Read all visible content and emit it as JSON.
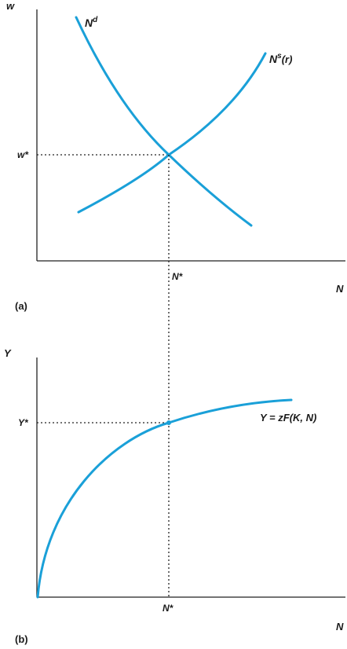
{
  "colors": {
    "curve": "#1aa0d8",
    "axis": "#222222",
    "text": "#1a1a1a"
  },
  "panel_a": {
    "label": "(a)",
    "y_axis_label": "w",
    "x_axis_label": "N",
    "equilibrium_wage_label": "w*",
    "equilibrium_employment_label": "N*",
    "demand_curve_label_base": "N",
    "demand_curve_label_sup": "d",
    "supply_curve_label_base": "N",
    "supply_curve_label_sup": "s",
    "supply_curve_label_arg": "(r)"
  },
  "panel_b": {
    "label": "(b)",
    "y_axis_label": "Y",
    "x_axis_label": "N",
    "equilibrium_output_label": "Y*",
    "equilibrium_employment_label": "N*",
    "production_function_label": "Y = zF(K, N)"
  }
}
